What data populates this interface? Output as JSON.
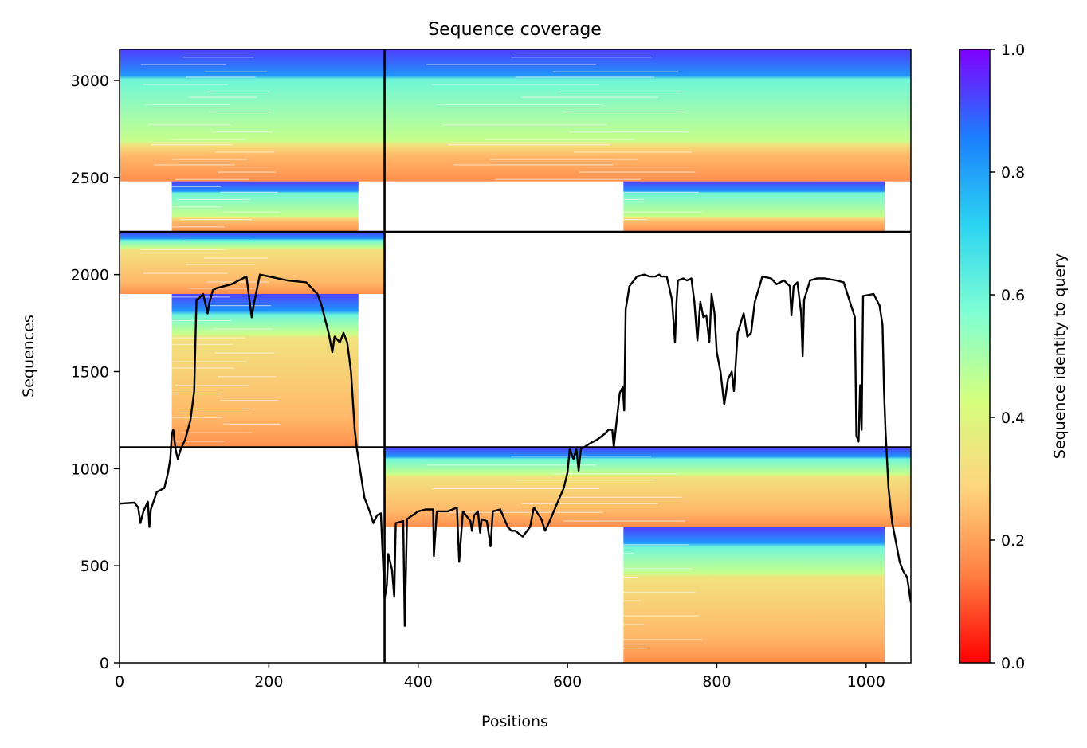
{
  "chart_data": {
    "type": "heatmap",
    "title": "Sequence coverage",
    "xlabel": "Positions",
    "ylabel": "Sequences",
    "xlim": [
      0,
      1060
    ],
    "ylim": [
      0,
      3160
    ],
    "xticks": [
      0,
      200,
      400,
      600,
      800,
      1000
    ],
    "yticks": [
      0,
      500,
      1000,
      1500,
      2000,
      2500,
      3000
    ],
    "grid": false,
    "colormap": "rainbow_r",
    "colorbar": {
      "label": "Sequence identity to query",
      "range": [
        0,
        1
      ],
      "ticks": [
        "0.0",
        "0.2",
        "0.4",
        "0.6",
        "0.8",
        "1.0"
      ],
      "colors": [
        "#ff0000",
        "#ff7f41",
        "#ffd57e",
        "#d4ff7e",
        "#7fffd4",
        "#2bd4f2",
        "#1b7ffd",
        "#8000ff"
      ]
    },
    "block_boundaries": {
      "x": [
        355
      ],
      "y": [
        1110,
        2220
      ]
    },
    "blocks": [
      {
        "name": "block-1",
        "x_range": [
          0,
          355
        ],
        "y_range": [
          2220,
          3160
        ],
        "high_identity_rows": [
          2975,
          3160
        ],
        "mid_identity_rows": [
          2480,
          2975
        ],
        "low_identity_rows": [
          2220,
          2480
        ],
        "low_identity_x_range": [
          70,
          320
        ]
      },
      {
        "name": "block-2",
        "x_range": [
          355,
          1060
        ],
        "y_range": [
          2220,
          3160
        ],
        "high_identity_rows": [
          2975,
          3160
        ],
        "mid_identity_rows": [
          2480,
          2975
        ],
        "low_identity_rows": [
          2220,
          2480
        ],
        "low_identity_x_range": [
          675,
          1025
        ]
      },
      {
        "name": "block-3",
        "x_range": [
          0,
          355
        ],
        "y_range": [
          1110,
          2220
        ],
        "high_identity_rows": [
          2100,
          2220
        ],
        "mid_identity_rows": [
          1900,
          2100
        ],
        "low_identity_rows": [
          1110,
          1900
        ],
        "low_identity_x_range": [
          70,
          320
        ]
      },
      {
        "name": "block-4",
        "x_range": [
          355,
          1060
        ],
        "y_range": [
          0,
          1110
        ],
        "high_identity_rows": [
          980,
          1110
        ],
        "mid_identity_rows": [
          700,
          980
        ],
        "low_identity_rows": [
          0,
          700
        ],
        "low_identity_x_range": [
          675,
          1025
        ]
      }
    ],
    "coverage_line": {
      "name": "coverage",
      "color": "#000000",
      "points": [
        [
          0,
          820
        ],
        [
          20,
          825
        ],
        [
          25,
          800
        ],
        [
          28,
          720
        ],
        [
          32,
          780
        ],
        [
          38,
          830
        ],
        [
          40,
          700
        ],
        [
          42,
          790
        ],
        [
          50,
          880
        ],
        [
          60,
          900
        ],
        [
          65,
          980
        ],
        [
          68,
          1050
        ],
        [
          70,
          1180
        ],
        [
          72,
          1200
        ],
        [
          75,
          1100
        ],
        [
          78,
          1050
        ],
        [
          82,
          1100
        ],
        [
          88,
          1150
        ],
        [
          95,
          1250
        ],
        [
          100,
          1400
        ],
        [
          103,
          1870
        ],
        [
          107,
          1880
        ],
        [
          112,
          1900
        ],
        [
          118,
          1800
        ],
        [
          120,
          1850
        ],
        [
          125,
          1920
        ],
        [
          130,
          1930
        ],
        [
          150,
          1950
        ],
        [
          170,
          1990
        ],
        [
          177,
          1780
        ],
        [
          180,
          1850
        ],
        [
          188,
          2000
        ],
        [
          200,
          1990
        ],
        [
          225,
          1970
        ],
        [
          250,
          1960
        ],
        [
          265,
          1900
        ],
        [
          270,
          1850
        ],
        [
          280,
          1700
        ],
        [
          285,
          1600
        ],
        [
          288,
          1680
        ],
        [
          295,
          1650
        ],
        [
          300,
          1700
        ],
        [
          305,
          1650
        ],
        [
          310,
          1500
        ],
        [
          315,
          1200
        ],
        [
          318,
          1100
        ],
        [
          322,
          1000
        ],
        [
          328,
          850
        ],
        [
          335,
          780
        ],
        [
          340,
          720
        ],
        [
          345,
          760
        ],
        [
          350,
          770
        ],
        [
          355,
          330
        ],
        [
          358,
          400
        ],
        [
          360,
          560
        ],
        [
          365,
          480
        ],
        [
          368,
          340
        ],
        [
          370,
          720
        ],
        [
          380,
          730
        ],
        [
          382,
          190
        ],
        [
          385,
          740
        ],
        [
          400,
          780
        ],
        [
          410,
          790
        ],
        [
          420,
          790
        ],
        [
          421,
          550
        ],
        [
          425,
          780
        ],
        [
          440,
          780
        ],
        [
          452,
          800
        ],
        [
          455,
          520
        ],
        [
          460,
          780
        ],
        [
          470,
          730
        ],
        [
          472,
          680
        ],
        [
          475,
          760
        ],
        [
          480,
          780
        ],
        [
          483,
          670
        ],
        [
          485,
          740
        ],
        [
          492,
          730
        ],
        [
          497,
          600
        ],
        [
          500,
          780
        ],
        [
          510,
          790
        ],
        [
          520,
          700
        ],
        [
          525,
          680
        ],
        [
          530,
          680
        ],
        [
          540,
          650
        ],
        [
          550,
          700
        ],
        [
          555,
          800
        ],
        [
          565,
          740
        ],
        [
          570,
          680
        ],
        [
          575,
          720
        ],
        [
          585,
          810
        ],
        [
          595,
          900
        ],
        [
          600,
          980
        ],
        [
          603,
          1100
        ],
        [
          608,
          1050
        ],
        [
          612,
          1100
        ],
        [
          615,
          990
        ],
        [
          618,
          1100
        ],
        [
          630,
          1130
        ],
        [
          640,
          1150
        ],
        [
          650,
          1180
        ],
        [
          655,
          1200
        ],
        [
          660,
          1200
        ],
        [
          662,
          1110
        ],
        [
          666,
          1250
        ],
        [
          670,
          1390
        ],
        [
          674,
          1420
        ],
        [
          676,
          1300
        ],
        [
          678,
          1820
        ],
        [
          683,
          1940
        ],
        [
          693,
          1990
        ],
        [
          703,
          2000
        ],
        [
          710,
          1990
        ],
        [
          718,
          1990
        ],
        [
          723,
          2000
        ],
        [
          725,
          1990
        ],
        [
          733,
          1990
        ],
        [
          740,
          1870
        ],
        [
          744,
          1650
        ],
        [
          746,
          1850
        ],
        [
          748,
          1970
        ],
        [
          755,
          1980
        ],
        [
          760,
          1970
        ],
        [
          766,
          1980
        ],
        [
          770,
          1860
        ],
        [
          774,
          1660
        ],
        [
          778,
          1860
        ],
        [
          782,
          1780
        ],
        [
          786,
          1790
        ],
        [
          790,
          1650
        ],
        [
          793,
          1900
        ],
        [
          797,
          1800
        ],
        [
          800,
          1600
        ],
        [
          805,
          1500
        ],
        [
          810,
          1330
        ],
        [
          815,
          1460
        ],
        [
          820,
          1500
        ],
        [
          823,
          1400
        ],
        [
          828,
          1700
        ],
        [
          836,
          1800
        ],
        [
          841,
          1680
        ],
        [
          846,
          1700
        ],
        [
          851,
          1860
        ],
        [
          861,
          1990
        ],
        [
          873,
          1980
        ],
        [
          880,
          1950
        ],
        [
          890,
          1970
        ],
        [
          898,
          1940
        ],
        [
          900,
          1790
        ],
        [
          903,
          1940
        ],
        [
          908,
          1960
        ],
        [
          913,
          1800
        ],
        [
          915,
          1580
        ],
        [
          917,
          1870
        ],
        [
          925,
          1970
        ],
        [
          934,
          1980
        ],
        [
          945,
          1980
        ],
        [
          960,
          1970
        ],
        [
          970,
          1960
        ],
        [
          985,
          1780
        ],
        [
          987,
          1170
        ],
        [
          990,
          1140
        ],
        [
          992,
          1430
        ],
        [
          994,
          1200
        ],
        [
          996,
          1890
        ],
        [
          1010,
          1900
        ],
        [
          1018,
          1840
        ],
        [
          1022,
          1740
        ],
        [
          1024,
          1400
        ],
        [
          1026,
          1200
        ],
        [
          1030,
          900
        ],
        [
          1035,
          720
        ],
        [
          1040,
          620
        ],
        [
          1045,
          520
        ],
        [
          1050,
          470
        ],
        [
          1055,
          440
        ],
        [
          1060,
          310
        ]
      ]
    }
  }
}
